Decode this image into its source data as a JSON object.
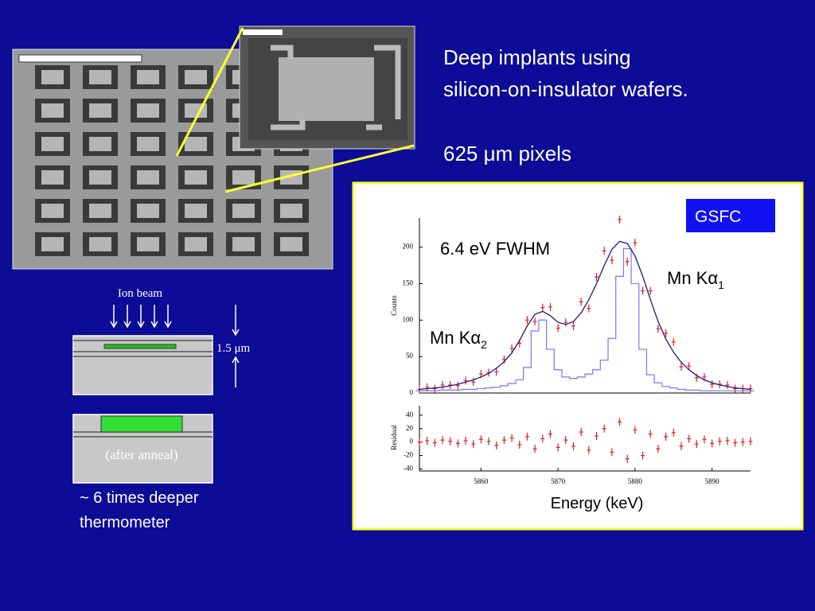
{
  "slide": {
    "heading": [
      "Deep implants using",
      "silicon-on-insulator wafers."
    ],
    "pixel_note": "625 μm pixels",
    "diagram": {
      "beam_label": "Ion beam",
      "depth_label": "1.5 μm",
      "anneal_label": "(after anneal)"
    },
    "caption": [
      "~ 6 times deeper",
      "thermometer"
    ]
  },
  "chart_data": [
    {
      "type": "line",
      "ylabel": "Counts",
      "badge": "GSFC",
      "annotation": "6.4 eV FWHM",
      "peak_labels": [
        {
          "text": "Mn Kα",
          "sub": "1"
        },
        {
          "text": "Mn Kα",
          "sub": "2"
        }
      ],
      "xlim": [
        5852,
        5895
      ],
      "ylim": [
        0,
        240
      ],
      "yticks": [
        0,
        50,
        100,
        150,
        200
      ],
      "x": [
        5852,
        5853,
        5854,
        5855,
        5856,
        5857,
        5858,
        5859,
        5860,
        5861,
        5862,
        5863,
        5864,
        5865,
        5866,
        5867,
        5868,
        5869,
        5870,
        5871,
        5872,
        5873,
        5874,
        5875,
        5876,
        5877,
        5878,
        5879,
        5880,
        5881,
        5882,
        5883,
        5884,
        5885,
        5886,
        5887,
        5888,
        5889,
        5890,
        5891,
        5892,
        5893,
        5894,
        5895
      ],
      "series": [
        {
          "style": "step",
          "color": "#8080ff",
          "values": [
            3,
            3,
            3,
            4,
            4,
            4,
            5,
            5,
            6,
            7,
            8,
            10,
            13,
            18,
            35,
            85,
            100,
            60,
            32,
            22,
            20,
            22,
            26,
            32,
            45,
            75,
            160,
            198,
            150,
            60,
            25,
            14,
            9,
            7,
            5,
            4,
            4,
            3,
            3,
            3,
            3,
            3,
            3,
            3
          ]
        },
        {
          "style": "points",
          "color": "#e02020",
          "values": [
            5,
            8,
            6,
            11,
            11,
            10,
            17,
            15,
            26,
            28,
            29,
            46,
            61,
            68,
            100,
            98,
            117,
            118,
            89,
            97,
            92,
            125,
            116,
            159,
            195,
            182,
            238,
            180,
            206,
            140,
            140,
            88,
            82,
            70,
            36,
            37,
            21,
            22,
            12,
            12,
            11,
            6,
            6,
            6
          ]
        },
        {
          "style": "line",
          "color": "#1a1a80",
          "values": [
            5,
            6,
            7,
            8,
            10,
            12,
            15,
            18,
            22,
            27,
            34,
            43,
            55,
            72,
            92,
            108,
            112,
            106,
            97,
            94,
            98,
            110,
            128,
            150,
            175,
            197,
            208,
            205,
            188,
            160,
            128,
            98,
            74,
            56,
            42,
            32,
            24,
            18,
            14,
            11,
            9,
            7,
            6,
            5
          ]
        }
      ]
    },
    {
      "type": "scatter",
      "ylabel": "Residual",
      "xlabel": "Energy (keV)",
      "xlim": [
        5852,
        5895
      ],
      "xticks": [
        5860,
        5870,
        5880,
        5890
      ],
      "ylim": [
        -43,
        54
      ],
      "yticks": [
        -40,
        -20,
        0,
        20,
        40
      ],
      "x": [
        5852,
        5853,
        5854,
        5855,
        5856,
        5857,
        5858,
        5859,
        5860,
        5861,
        5862,
        5863,
        5864,
        5865,
        5866,
        5867,
        5868,
        5869,
        5870,
        5871,
        5872,
        5873,
        5874,
        5875,
        5876,
        5877,
        5878,
        5879,
        5880,
        5881,
        5882,
        5883,
        5884,
        5885,
        5886,
        5887,
        5888,
        5889,
        5890,
        5891,
        5892,
        5893,
        5894,
        5895
      ],
      "series": [
        {
          "style": "points",
          "color": "#e02020",
          "values": [
            0,
            2,
            -1,
            3,
            1,
            -2,
            2,
            -3,
            4,
            1,
            -5,
            3,
            6,
            -4,
            8,
            -10,
            5,
            12,
            -8,
            3,
            -6,
            15,
            -12,
            9,
            20,
            -15,
            30,
            -25,
            18,
            -20,
            12,
            -10,
            8,
            14,
            -6,
            5,
            -3,
            4,
            -2,
            1,
            2,
            -1,
            0,
            1
          ]
        }
      ]
    }
  ]
}
